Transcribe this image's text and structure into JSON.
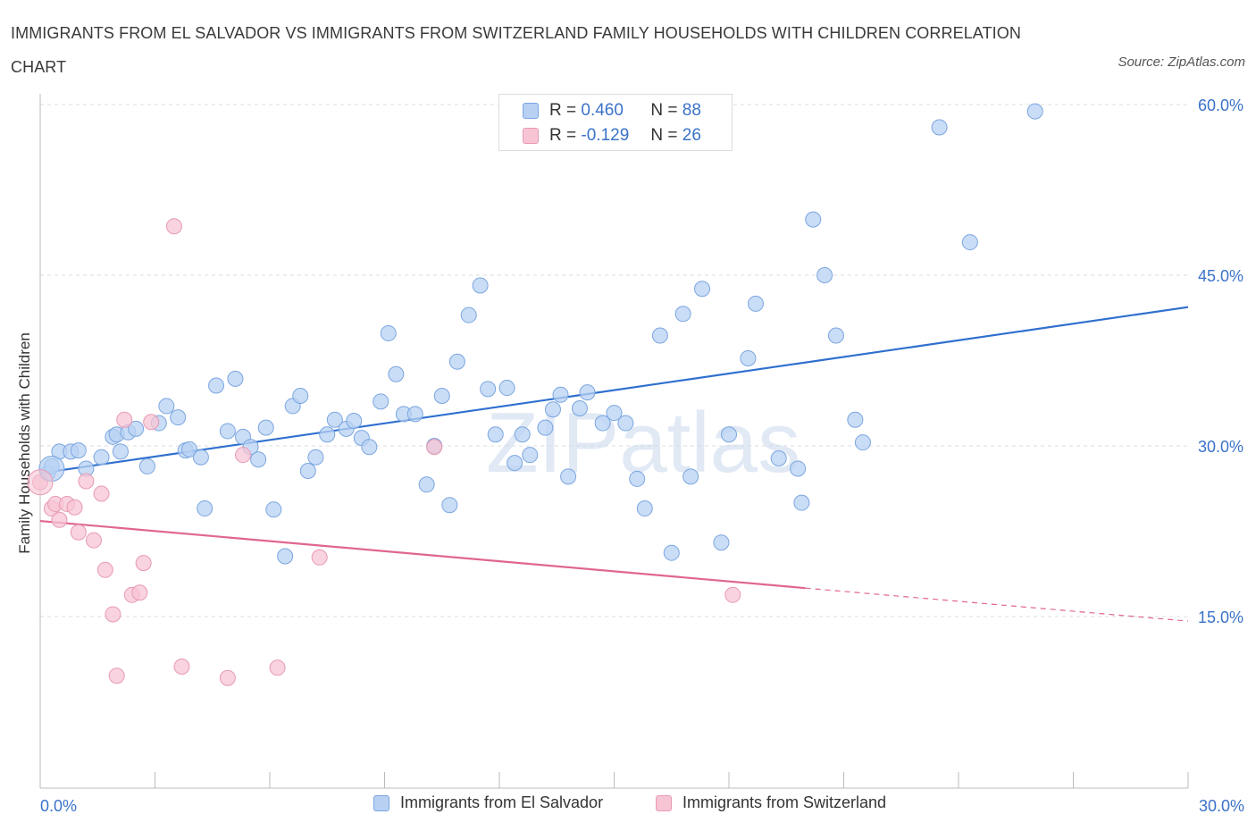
{
  "title": "IMMIGRANTS FROM EL SALVADOR VS IMMIGRANTS FROM SWITZERLAND FAMILY HOUSEHOLDS WITH CHILDREN CORRELATION CHART",
  "source": "Source: ZipAtlas.com",
  "watermark": "ZIPatlas",
  "legend": {
    "rows": [
      {
        "r_label": "R =",
        "r_value": "0.460",
        "n_label": "N =",
        "n_value": "88"
      },
      {
        "r_label": "R =",
        "r_value": "-0.129",
        "n_label": "N =",
        "n_value": "26"
      }
    ]
  },
  "colors": {
    "blue_fill": "#b8d1f3",
    "blue_stroke": "#7aa6e0",
    "blue_line": "#2f6fcf",
    "pink_fill": "#f7c4d4",
    "pink_stroke": "#e89ab3",
    "pink_line": "#e0668f",
    "tick_text": "#3a72c9",
    "grid": "#dcdcdc"
  },
  "chart_data": {
    "type": "scatter",
    "title": "IMMIGRANTS FROM EL SALVADOR VS IMMIGRANTS FROM SWITZERLAND FAMILY HOUSEHOLDS WITH CHILDREN CORRELATION CHART",
    "xlabel": "",
    "ylabel": "Family Households with Children",
    "xlim": [
      0,
      30
    ],
    "ylim": [
      0,
      60
    ],
    "x_tick_labels": [
      "0.0%",
      "30.0%"
    ],
    "y_ticks": [
      15,
      30,
      45,
      60
    ],
    "y_tick_labels": [
      "15.0%",
      "30.0%",
      "45.0%",
      "60.0%"
    ],
    "grid": true,
    "legend_position": "top-center",
    "series": [
      {
        "name": "Immigrants from El Salvador",
        "color": "#b8d1f3",
        "trend": {
          "x": [
            0,
            30
          ],
          "y": [
            27.6,
            42.2
          ]
        },
        "points": [
          [
            0.2,
            27.6
          ],
          [
            0.5,
            29.5
          ],
          [
            0.8,
            29.5
          ],
          [
            1.0,
            29.6
          ],
          [
            1.2,
            28.0
          ],
          [
            1.6,
            29.0
          ],
          [
            1.9,
            30.8
          ],
          [
            2.0,
            31.0
          ],
          [
            2.1,
            29.5
          ],
          [
            2.3,
            31.2
          ],
          [
            2.5,
            31.5
          ],
          [
            2.8,
            28.2
          ],
          [
            3.1,
            32.0
          ],
          [
            3.3,
            33.5
          ],
          [
            3.6,
            32.5
          ],
          [
            3.8,
            29.6
          ],
          [
            3.9,
            29.7
          ],
          [
            4.2,
            29.0
          ],
          [
            4.3,
            24.5
          ],
          [
            4.6,
            35.3
          ],
          [
            4.9,
            31.3
          ],
          [
            5.1,
            35.9
          ],
          [
            5.3,
            30.8
          ],
          [
            5.5,
            29.9
          ],
          [
            5.7,
            28.8
          ],
          [
            5.9,
            31.6
          ],
          [
            6.1,
            24.4
          ],
          [
            6.4,
            20.3
          ],
          [
            6.6,
            33.5
          ],
          [
            6.8,
            34.4
          ],
          [
            7.0,
            27.8
          ],
          [
            7.2,
            29.0
          ],
          [
            7.5,
            31.0
          ],
          [
            7.7,
            32.3
          ],
          [
            8.0,
            31.5
          ],
          [
            8.2,
            32.2
          ],
          [
            8.4,
            30.7
          ],
          [
            8.6,
            29.9
          ],
          [
            8.9,
            33.9
          ],
          [
            9.1,
            39.9
          ],
          [
            9.3,
            36.3
          ],
          [
            9.5,
            32.8
          ],
          [
            9.8,
            32.8
          ],
          [
            10.1,
            26.6
          ],
          [
            10.3,
            30.0
          ],
          [
            10.5,
            34.4
          ],
          [
            10.7,
            24.8
          ],
          [
            10.9,
            37.4
          ],
          [
            11.2,
            41.5
          ],
          [
            11.5,
            44.1
          ],
          [
            11.7,
            35.0
          ],
          [
            11.9,
            31.0
          ],
          [
            12.2,
            35.1
          ],
          [
            12.4,
            28.5
          ],
          [
            12.6,
            31.0
          ],
          [
            12.8,
            29.2
          ],
          [
            13.2,
            31.6
          ],
          [
            13.4,
            33.2
          ],
          [
            13.6,
            34.5
          ],
          [
            13.8,
            27.3
          ],
          [
            14.1,
            33.3
          ],
          [
            14.3,
            34.7
          ],
          [
            14.7,
            32.0
          ],
          [
            15.0,
            32.9
          ],
          [
            15.3,
            32.0
          ],
          [
            15.6,
            27.1
          ],
          [
            15.8,
            24.5
          ],
          [
            16.2,
            39.7
          ],
          [
            16.5,
            20.6
          ],
          [
            16.8,
            41.6
          ],
          [
            17.0,
            27.3
          ],
          [
            17.3,
            43.8
          ],
          [
            17.8,
            21.5
          ],
          [
            18.0,
            31.0
          ],
          [
            18.5,
            37.7
          ],
          [
            18.7,
            42.5
          ],
          [
            19.3,
            28.9
          ],
          [
            19.8,
            28.0
          ],
          [
            19.9,
            25.0
          ],
          [
            20.2,
            49.9
          ],
          [
            20.5,
            45.0
          ],
          [
            20.8,
            39.7
          ],
          [
            21.3,
            32.3
          ],
          [
            21.5,
            30.3
          ],
          [
            23.5,
            58.0
          ],
          [
            24.3,
            47.9
          ],
          [
            26.0,
            59.4
          ],
          [
            0.3,
            28.2
          ]
        ]
      },
      {
        "name": "Immigrants from Switzerland",
        "color": "#f7c4d4",
        "trend": {
          "x": [
            0,
            20
          ],
          "y": [
            23.4,
            17.5
          ],
          "dashed_to": {
            "x": 30,
            "y": 14.6
          }
        },
        "points": [
          [
            0.0,
            26.8
          ],
          [
            0.3,
            24.5
          ],
          [
            0.4,
            24.9
          ],
          [
            0.5,
            23.5
          ],
          [
            0.7,
            24.9
          ],
          [
            0.9,
            24.6
          ],
          [
            1.0,
            22.4
          ],
          [
            1.2,
            26.9
          ],
          [
            1.4,
            21.7
          ],
          [
            1.6,
            25.8
          ],
          [
            1.7,
            19.1
          ],
          [
            1.9,
            15.2
          ],
          [
            2.0,
            9.8
          ],
          [
            2.2,
            32.3
          ],
          [
            2.4,
            16.9
          ],
          [
            2.6,
            17.1
          ],
          [
            2.7,
            19.7
          ],
          [
            2.9,
            32.1
          ],
          [
            3.5,
            49.3
          ],
          [
            3.7,
            10.6
          ],
          [
            4.9,
            9.6
          ],
          [
            5.3,
            29.2
          ],
          [
            6.2,
            10.5
          ],
          [
            7.3,
            20.2
          ],
          [
            10.3,
            29.9
          ],
          [
            18.1,
            16.9
          ]
        ]
      }
    ]
  }
}
